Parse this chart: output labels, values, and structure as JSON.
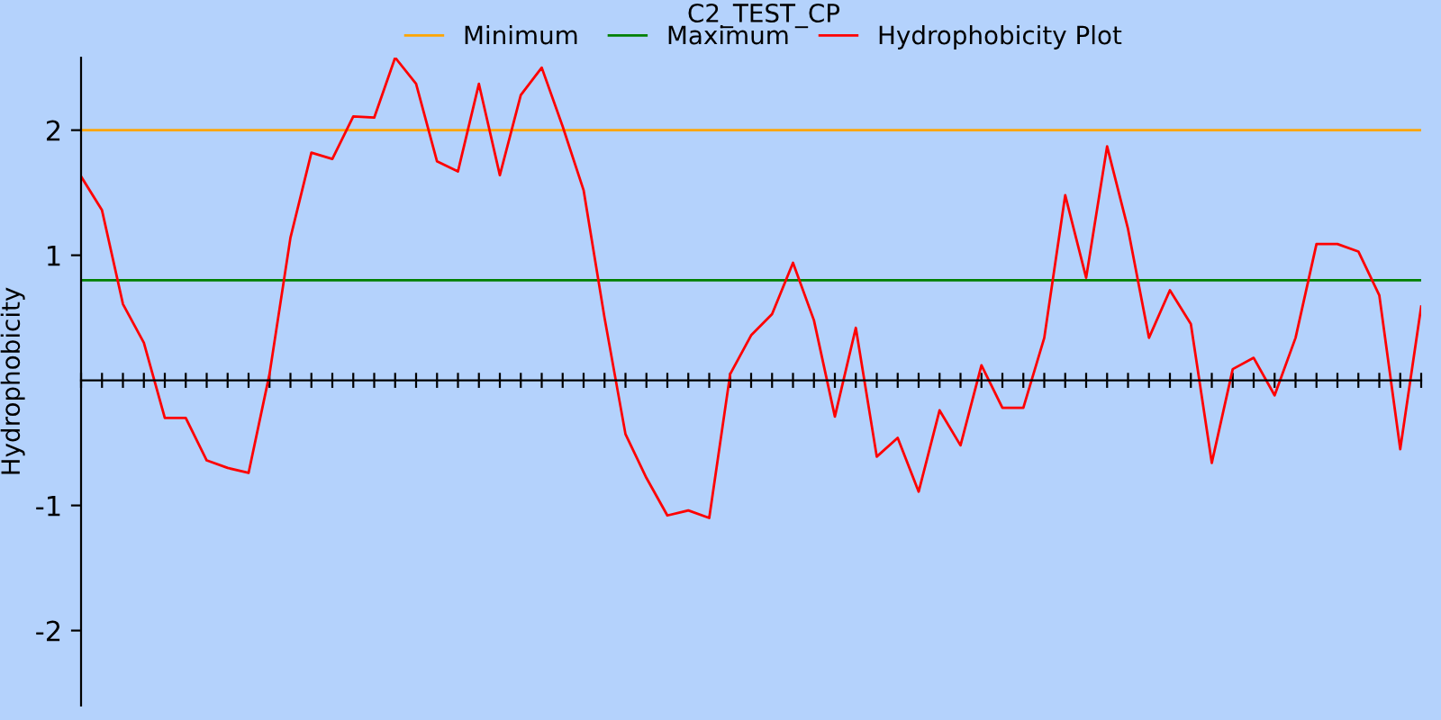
{
  "chart_data": {
    "type": "line",
    "title": "C2_TEST_CP",
    "ylabel": "Hydrophobicity",
    "categories": [
      null,
      null,
      null,
      null,
      null,
      null,
      null,
      null,
      null,
      null,
      null,
      null,
      null,
      null,
      null,
      null,
      null,
      null,
      null,
      null,
      null,
      null,
      null,
      null,
      null,
      null,
      null,
      null,
      null,
      null,
      null,
      null,
      null,
      null,
      null,
      null,
      null,
      null,
      null,
      null,
      null,
      null,
      null,
      null,
      null,
      null,
      null,
      null,
      null,
      null,
      null,
      null,
      null,
      null,
      null,
      null,
      null,
      null,
      null,
      null,
      null,
      null,
      null,
      null,
      null
    ],
    "series": [
      {
        "name": "Minimum",
        "color": "#ffa500",
        "values": [
          2.0,
          2.0,
          2.0,
          2.0,
          2.0,
          2.0,
          2.0,
          2.0,
          2.0,
          2.0,
          2.0,
          2.0,
          2.0,
          2.0,
          2.0,
          2.0,
          2.0,
          2.0,
          2.0,
          2.0,
          2.0,
          2.0,
          2.0,
          2.0,
          2.0,
          2.0,
          2.0,
          2.0,
          2.0,
          2.0,
          2.0,
          2.0,
          2.0,
          2.0,
          2.0,
          2.0,
          2.0,
          2.0,
          2.0,
          2.0,
          2.0,
          2.0,
          2.0,
          2.0,
          2.0,
          2.0,
          2.0,
          2.0,
          2.0,
          2.0,
          2.0,
          2.0,
          2.0,
          2.0,
          2.0,
          2.0,
          2.0,
          2.0,
          2.0,
          2.0,
          2.0,
          2.0,
          2.0,
          2.0,
          2.0
        ]
      },
      {
        "name": "Maximum",
        "color": "#008000",
        "values": [
          0.8,
          0.8,
          0.8,
          0.8,
          0.8,
          0.8,
          0.8,
          0.8,
          0.8,
          0.8,
          0.8,
          0.8,
          0.8,
          0.8,
          0.8,
          0.8,
          0.8,
          0.8,
          0.8,
          0.8,
          0.8,
          0.8,
          0.8,
          0.8,
          0.8,
          0.8,
          0.8,
          0.8,
          0.8,
          0.8,
          0.8,
          0.8,
          0.8,
          0.8,
          0.8,
          0.8,
          0.8,
          0.8,
          0.8,
          0.8,
          0.8,
          0.8,
          0.8,
          0.8,
          0.8,
          0.8,
          0.8,
          0.8,
          0.8,
          0.8,
          0.8,
          0.8,
          0.8,
          0.8,
          0.8,
          0.8,
          0.8,
          0.8,
          0.8,
          0.8,
          0.8,
          0.8,
          0.8,
          0.8,
          0.8
        ]
      },
      {
        "name": "Hydrophobicity Plot",
        "color": "#ff0000",
        "values": [
          1.63,
          1.36,
          0.61,
          0.3,
          -0.3,
          -0.3,
          -0.64,
          -0.7,
          -0.74,
          0.05,
          1.14,
          1.82,
          1.77,
          2.11,
          2.1,
          2.58,
          2.37,
          1.75,
          1.67,
          2.37,
          1.64,
          2.28,
          2.5,
          2.03,
          1.52,
          0.5,
          -0.43,
          -0.78,
          -1.08,
          -1.04,
          -1.1,
          0.05,
          0.36,
          0.53,
          0.94,
          0.48,
          -0.29,
          0.42,
          -0.61,
          -0.46,
          -0.89,
          -0.24,
          -0.52,
          0.12,
          -0.22,
          -0.22,
          0.34,
          1.48,
          0.82,
          1.87,
          1.21,
          0.34,
          0.72,
          0.45,
          -0.66,
          0.09,
          0.18,
          -0.12,
          0.34,
          1.09,
          1.09,
          1.03,
          0.68,
          -0.55,
          0.59
        ]
      }
    ],
    "ylim": [
      -2.6,
      2.58
    ],
    "yticks": [
      2,
      1,
      -1,
      -2
    ],
    "tick_labels": "y",
    "legend": "top",
    "grid": false,
    "marker": "none",
    "line_style": "solid"
  }
}
